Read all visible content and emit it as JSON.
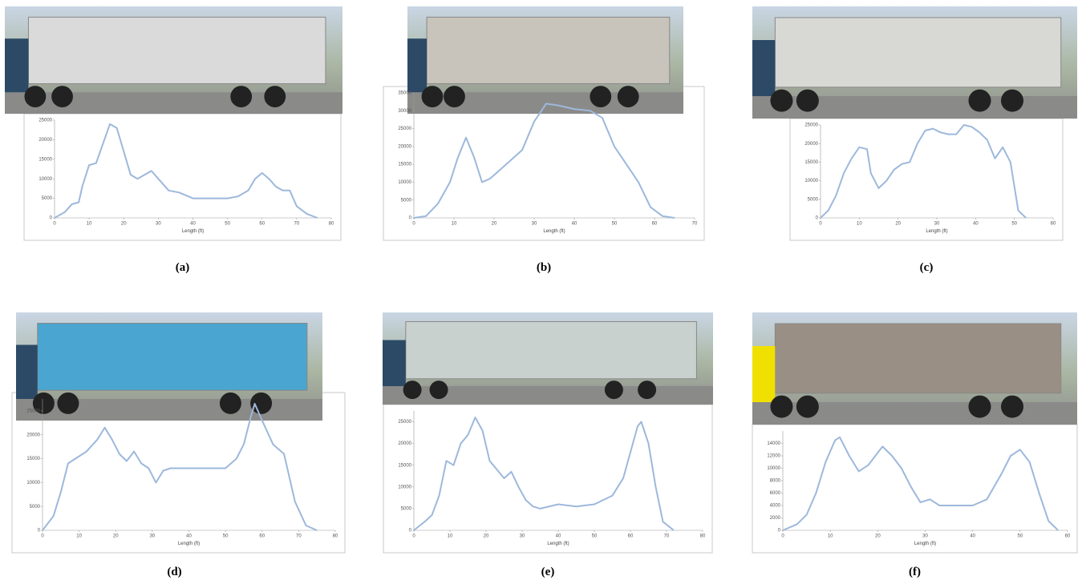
{
  "chart_data": [
    {
      "type": "line",
      "caption": "(a)",
      "x_label": "Length (ft)",
      "color": "#9db8dc",
      "x": [
        0,
        3,
        5,
        7,
        8,
        10,
        12,
        14,
        16,
        18,
        20,
        22,
        24,
        26,
        28,
        30,
        33,
        36,
        40,
        45,
        50,
        53,
        56,
        58,
        60,
        62,
        64,
        66,
        68,
        70,
        73,
        76
      ],
      "values": [
        0,
        1500,
        3500,
        4000,
        8000,
        13500,
        14000,
        19000,
        24000,
        23000,
        17000,
        11000,
        10000,
        11000,
        12000,
        10000,
        7000,
        6500,
        5000,
        5000,
        5000,
        5500,
        7000,
        10000,
        11500,
        10000,
        8000,
        7000,
        7000,
        3000,
        1000,
        0
      ],
      "xlim": [
        0,
        80
      ],
      "xticks": [
        0,
        10,
        20,
        30,
        40,
        50,
        60,
        70,
        80
      ],
      "ylim": [
        0,
        25000
      ],
      "yticks": [
        0,
        5000,
        10000,
        15000,
        20000,
        25000
      ]
    },
    {
      "type": "line",
      "caption": "(b)",
      "x_label": "Length (ft)",
      "color": "#9db8dc",
      "x": [
        0,
        3,
        6,
        9,
        11,
        13,
        15,
        17,
        19,
        21,
        24,
        27,
        30,
        33,
        36,
        40,
        44,
        47,
        50,
        53,
        56,
        59,
        62,
        65
      ],
      "values": [
        0,
        500,
        4000,
        10000,
        17000,
        22500,
        17000,
        10000,
        11000,
        13000,
        16000,
        19000,
        27000,
        32000,
        31500,
        30500,
        30000,
        28000,
        20000,
        15000,
        10000,
        3000,
        500,
        0
      ],
      "xlim": [
        0,
        70
      ],
      "xticks": [
        0,
        10,
        20,
        30,
        40,
        50,
        60,
        70
      ],
      "ylim": [
        0,
        35000
      ],
      "yticks": [
        0,
        5000,
        10000,
        15000,
        20000,
        25000,
        30000,
        35000
      ]
    },
    {
      "type": "line",
      "caption": "(c)",
      "x_label": "Length (ft)",
      "color": "#9db8dc",
      "x": [
        0,
        2,
        4,
        6,
        8,
        10,
        12,
        13,
        15,
        17,
        19,
        21,
        23,
        25,
        27,
        29,
        31,
        33,
        35,
        37,
        39,
        41,
        43,
        45,
        47,
        49,
        51,
        53
      ],
      "values": [
        0,
        2000,
        6000,
        12000,
        16000,
        19000,
        18500,
        12000,
        8000,
        10000,
        13000,
        14500,
        15000,
        20000,
        23500,
        24000,
        23000,
        22500,
        22500,
        25000,
        24500,
        23000,
        21000,
        16000,
        19000,
        15000,
        2000,
        0
      ],
      "xlim": [
        0,
        60
      ],
      "xticks": [
        0,
        10,
        20,
        30,
        40,
        50,
        60
      ],
      "ylim": [
        0,
        25000
      ],
      "yticks": [
        0,
        5000,
        10000,
        15000,
        20000,
        25000
      ]
    },
    {
      "type": "line",
      "caption": "(d)",
      "x_label": "Length (ft)",
      "color": "#9db8dc",
      "x": [
        0,
        3,
        5,
        7,
        9,
        12,
        15,
        17,
        19,
        21,
        23,
        25,
        27,
        29,
        31,
        33,
        35,
        40,
        45,
        50,
        53,
        55,
        57,
        58,
        60,
        63,
        66,
        69,
        72,
        75
      ],
      "values": [
        0,
        3000,
        8000,
        14000,
        15000,
        16500,
        19000,
        21500,
        19000,
        16000,
        14500,
        16500,
        14000,
        13000,
        10000,
        12500,
        13000,
        13000,
        13000,
        13000,
        15000,
        18000,
        24000,
        26500,
        23000,
        18000,
        16000,
        6000,
        1000,
        0
      ],
      "xlim": [
        0,
        80
      ],
      "xticks": [
        0,
        10,
        20,
        30,
        40,
        50,
        60,
        70,
        80
      ],
      "ylim": [
        0,
        27500
      ],
      "yticks": [
        0,
        5000,
        10000,
        15000,
        20000,
        25000
      ]
    },
    {
      "type": "line",
      "caption": "(e)",
      "x_label": "Length (ft)",
      "color": "#9db8dc",
      "x": [
        0,
        3,
        5,
        7,
        9,
        11,
        13,
        15,
        17,
        19,
        21,
        23,
        25,
        27,
        29,
        31,
        33,
        35,
        40,
        45,
        50,
        55,
        58,
        60,
        62,
        63,
        65,
        67,
        69,
        72
      ],
      "values": [
        0,
        2000,
        3500,
        8000,
        16000,
        15000,
        20000,
        22000,
        26000,
        23000,
        16000,
        14000,
        12000,
        13500,
        10000,
        7000,
        5500,
        5000,
        6000,
        5500,
        6000,
        8000,
        12000,
        18000,
        24000,
        25000,
        20000,
        10000,
        2000,
        0
      ],
      "xlim": [
        0,
        80
      ],
      "xticks": [
        0,
        10,
        20,
        30,
        40,
        50,
        60,
        70,
        80
      ],
      "ylim": [
        0,
        27500
      ],
      "yticks": [
        0,
        5000,
        10000,
        15000,
        20000,
        25000
      ]
    },
    {
      "type": "line",
      "caption": "(f)",
      "x_label": "Length (ft)",
      "color": "#9db8dc",
      "x": [
        0,
        3,
        5,
        7,
        9,
        11,
        12,
        14,
        16,
        18,
        21,
        23,
        25,
        27,
        29,
        31,
        33,
        36,
        40,
        43,
        46,
        48,
        50,
        52,
        54,
        56,
        58
      ],
      "values": [
        0,
        1000,
        2500,
        6000,
        11000,
        14500,
        15000,
        12000,
        9500,
        10500,
        13500,
        12000,
        10000,
        7000,
        4500,
        5000,
        4000,
        4000,
        4000,
        5000,
        9000,
        12000,
        13000,
        11000,
        6000,
        1500,
        0
      ],
      "xlim": [
        0,
        60
      ],
      "xticks": [
        0,
        10,
        20,
        30,
        40,
        50,
        60
      ],
      "ylim": [
        0,
        16000
      ],
      "yticks": [
        0,
        2000,
        4000,
        6000,
        8000,
        10000,
        12000,
        14000
      ]
    }
  ]
}
